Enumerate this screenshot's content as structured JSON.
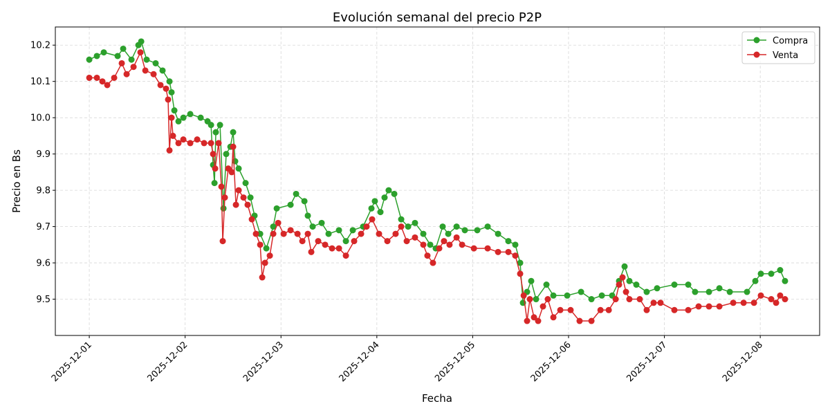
{
  "chart_data": {
    "type": "line",
    "title": "Evolución semanal del precio P2P",
    "xlabel": "Fecha",
    "ylabel": "Precio en Bs",
    "xlim": [
      "2025-11-30 15:30",
      "2025-12-08 14:52"
    ],
    "ylim": [
      9.4,
      10.25
    ],
    "x_ticks": [
      "2025-12-01",
      "2025-12-02",
      "2025-12-03",
      "2025-12-04",
      "2025-12-05",
      "2025-12-06",
      "2025-12-07",
      "2025-12-08"
    ],
    "y_ticks": [
      "9.5",
      "9.6",
      "9.7",
      "9.8",
      "9.9",
      "10.0",
      "10.1",
      "10.2"
    ],
    "grid": true,
    "grid_style": "dashed",
    "legend_position": "top-right",
    "markers": true,
    "series": [
      {
        "name": "Compra",
        "color": "#2ca02c",
        "points": [
          [
            "2025-12-01 00:00",
            10.16
          ],
          [
            "2025-12-01 01:54",
            10.17
          ],
          [
            "2025-12-01 03:38",
            10.18
          ],
          [
            "2025-12-01 07:06",
            10.17
          ],
          [
            "2025-12-01 08:29",
            10.19
          ],
          [
            "2025-12-01 10:34",
            10.16
          ],
          [
            "2025-12-01 12:18",
            10.2
          ],
          [
            "2025-12-01 13:00",
            10.21
          ],
          [
            "2025-12-01 14:22",
            10.16
          ],
          [
            "2025-12-01 16:37",
            10.15
          ],
          [
            "2025-12-01 18:21",
            10.13
          ],
          [
            "2025-12-01 20:05",
            10.1
          ],
          [
            "2025-12-01 20:36",
            10.07
          ],
          [
            "2025-12-01 21:18",
            10.02
          ],
          [
            "2025-12-01 22:20",
            9.99
          ],
          [
            "2025-12-01 23:33",
            10.0
          ],
          [
            "2025-12-02 01:17",
            10.01
          ],
          [
            "2025-12-02 03:53",
            10.0
          ],
          [
            "2025-12-02 05:37",
            9.99
          ],
          [
            "2025-12-02 06:29",
            9.98
          ],
          [
            "2025-12-02 07:00",
            9.87
          ],
          [
            "2025-12-02 07:21",
            9.82
          ],
          [
            "2025-12-02 07:41",
            9.96
          ],
          [
            "2025-12-02 08:44",
            9.98
          ],
          [
            "2025-12-02 09:36",
            9.75
          ],
          [
            "2025-12-02 10:17",
            9.9
          ],
          [
            "2025-12-02 11:20",
            9.92
          ],
          [
            "2025-12-02 12:01",
            9.96
          ],
          [
            "2025-12-02 12:32",
            9.88
          ],
          [
            "2025-12-02 13:24",
            9.86
          ],
          [
            "2025-12-02 15:08",
            9.82
          ],
          [
            "2025-12-02 16:21",
            9.78
          ],
          [
            "2025-12-02 17:23",
            9.73
          ],
          [
            "2025-12-02 18:47",
            9.68
          ],
          [
            "2025-12-02 20:20",
            9.64
          ],
          [
            "2025-12-02 22:04",
            9.7
          ],
          [
            "2025-12-02 22:56",
            9.75
          ],
          [
            "2025-12-03 02:24",
            9.76
          ],
          [
            "2025-12-03 03:47",
            9.79
          ],
          [
            "2025-12-03 05:52",
            9.77
          ],
          [
            "2025-12-03 06:43",
            9.73
          ],
          [
            "2025-12-03 07:56",
            9.7
          ],
          [
            "2025-12-03 10:11",
            9.71
          ],
          [
            "2025-12-03 11:55",
            9.68
          ],
          [
            "2025-12-03 14:31",
            9.69
          ],
          [
            "2025-12-03 16:15",
            9.66
          ],
          [
            "2025-12-03 17:59",
            9.69
          ],
          [
            "2025-12-03 20:34",
            9.7
          ],
          [
            "2025-12-03 22:39",
            9.75
          ],
          [
            "2025-12-03 23:30",
            9.77
          ],
          [
            "2025-12-04 00:54",
            9.74
          ],
          [
            "2025-12-04 01:56",
            9.78
          ],
          [
            "2025-12-04 02:58",
            9.8
          ],
          [
            "2025-12-04 04:22",
            9.79
          ],
          [
            "2025-12-04 06:06",
            9.72
          ],
          [
            "2025-12-04 07:50",
            9.7
          ],
          [
            "2025-12-04 09:33",
            9.71
          ],
          [
            "2025-12-04 11:38",
            9.68
          ],
          [
            "2025-12-04 13:22",
            9.65
          ],
          [
            "2025-12-04 14:45",
            9.64
          ],
          [
            "2025-12-04 16:29",
            9.7
          ],
          [
            "2025-12-04 17:53",
            9.68
          ],
          [
            "2025-12-04 19:58",
            9.7
          ],
          [
            "2025-12-04 22:02",
            9.69
          ],
          [
            "2025-12-05 01:09",
            9.69
          ],
          [
            "2025-12-05 03:45",
            9.7
          ],
          [
            "2025-12-05 06:21",
            9.68
          ],
          [
            "2025-12-05 08:56",
            9.66
          ],
          [
            "2025-12-05 10:40",
            9.65
          ],
          [
            "2025-12-05 11:53",
            9.6
          ],
          [
            "2025-12-05 12:35",
            9.49
          ],
          [
            "2025-12-05 13:37",
            9.52
          ],
          [
            "2025-12-05 14:39",
            9.55
          ],
          [
            "2025-12-05 15:52",
            9.5
          ],
          [
            "2025-12-05 18:28",
            9.54
          ],
          [
            "2025-12-05 20:12",
            9.51
          ],
          [
            "2025-12-05 23:40",
            9.51
          ],
          [
            "2025-12-06 03:08",
            9.52
          ],
          [
            "2025-12-06 05:44",
            9.5
          ],
          [
            "2025-12-06 08:20",
            9.51
          ],
          [
            "2025-12-06 10:55",
            9.51
          ],
          [
            "2025-12-06 12:39",
            9.55
          ],
          [
            "2025-12-06 14:02",
            9.59
          ],
          [
            "2025-12-06 15:14",
            9.55
          ],
          [
            "2025-12-06 16:58",
            9.54
          ],
          [
            "2025-12-06 19:34",
            9.52
          ],
          [
            "2025-12-06 22:10",
            9.53
          ],
          [
            "2025-12-07 02:30",
            9.54
          ],
          [
            "2025-12-07 05:58",
            9.54
          ],
          [
            "2025-12-07 07:41",
            9.52
          ],
          [
            "2025-12-07 11:10",
            9.52
          ],
          [
            "2025-12-07 13:46",
            9.53
          ],
          [
            "2025-12-07 16:22",
            9.52
          ],
          [
            "2025-12-07 20:41",
            9.52
          ],
          [
            "2025-12-07 22:46",
            9.55
          ],
          [
            "2025-12-08 00:09",
            9.57
          ],
          [
            "2025-12-08 02:45",
            9.57
          ],
          [
            "2025-12-08 04:59",
            9.58
          ],
          [
            "2025-12-08 06:12",
            9.55
          ]
        ]
      },
      {
        "name": "Venta",
        "color": "#d62728",
        "points": [
          [
            "2025-12-01 00:00",
            10.11
          ],
          [
            "2025-12-01 01:54",
            10.11
          ],
          [
            "2025-12-01 03:17",
            10.1
          ],
          [
            "2025-12-01 04:30",
            10.09
          ],
          [
            "2025-12-01 06:14",
            10.11
          ],
          [
            "2025-12-01 08:08",
            10.15
          ],
          [
            "2025-12-01 09:21",
            10.12
          ],
          [
            "2025-12-01 11:05",
            10.14
          ],
          [
            "2025-12-01 12:49",
            10.18
          ],
          [
            "2025-12-01 14:02",
            10.13
          ],
          [
            "2025-12-01 16:06",
            10.12
          ],
          [
            "2025-12-01 17:50",
            10.09
          ],
          [
            "2025-12-01 19:13",
            10.08
          ],
          [
            "2025-12-01 19:44",
            10.05
          ],
          [
            "2025-12-01 20:05",
            9.91
          ],
          [
            "2025-12-01 20:36",
            10.0
          ],
          [
            "2025-12-01 20:57",
            9.95
          ],
          [
            "2025-12-01 22:20",
            9.93
          ],
          [
            "2025-12-01 23:33",
            9.94
          ],
          [
            "2025-12-02 01:17",
            9.93
          ],
          [
            "2025-12-02 03:01",
            9.94
          ],
          [
            "2025-12-02 04:45",
            9.93
          ],
          [
            "2025-12-02 06:29",
            9.93
          ],
          [
            "2025-12-02 07:00",
            9.9
          ],
          [
            "2025-12-02 07:31",
            9.86
          ],
          [
            "2025-12-02 08:23",
            9.93
          ],
          [
            "2025-12-02 09:05",
            9.81
          ],
          [
            "2025-12-02 09:25",
            9.66
          ],
          [
            "2025-12-02 09:56",
            9.78
          ],
          [
            "2025-12-02 10:48",
            9.86
          ],
          [
            "2025-12-02 11:40",
            9.85
          ],
          [
            "2025-12-02 12:01",
            9.92
          ],
          [
            "2025-12-02 12:43",
            9.76
          ],
          [
            "2025-12-02 13:24",
            9.8
          ],
          [
            "2025-12-02 14:37",
            9.78
          ],
          [
            "2025-12-02 15:39",
            9.76
          ],
          [
            "2025-12-02 16:42",
            9.72
          ],
          [
            "2025-12-02 17:44",
            9.68
          ],
          [
            "2025-12-02 18:47",
            9.65
          ],
          [
            "2025-12-02 19:18",
            9.56
          ],
          [
            "2025-12-02 20:00",
            9.6
          ],
          [
            "2025-12-02 21:12",
            9.62
          ],
          [
            "2025-12-02 22:04",
            9.68
          ],
          [
            "2025-12-02 23:17",
            9.71
          ],
          [
            "2025-12-03 00:40",
            9.68
          ],
          [
            "2025-12-03 02:24",
            9.69
          ],
          [
            "2025-12-03 04:08",
            9.68
          ],
          [
            "2025-12-03 05:21",
            9.66
          ],
          [
            "2025-12-03 06:43",
            9.68
          ],
          [
            "2025-12-03 07:35",
            9.63
          ],
          [
            "2025-12-03 09:19",
            9.66
          ],
          [
            "2025-12-03 11:03",
            9.65
          ],
          [
            "2025-12-03 12:47",
            9.64
          ],
          [
            "2025-12-03 14:31",
            9.64
          ],
          [
            "2025-12-03 16:15",
            9.62
          ],
          [
            "2025-12-03 18:19",
            9.66
          ],
          [
            "2025-12-03 20:03",
            9.68
          ],
          [
            "2025-12-03 21:26",
            9.7
          ],
          [
            "2025-12-03 22:49",
            9.72
          ],
          [
            "2025-12-04 00:33",
            9.68
          ],
          [
            "2025-12-04 02:38",
            9.66
          ],
          [
            "2025-12-04 04:42",
            9.68
          ],
          [
            "2025-12-04 06:06",
            9.7
          ],
          [
            "2025-12-04 07:29",
            9.66
          ],
          [
            "2025-12-04 09:33",
            9.67
          ],
          [
            "2025-12-04 11:38",
            9.65
          ],
          [
            "2025-12-04 12:40",
            9.62
          ],
          [
            "2025-12-04 14:03",
            9.6
          ],
          [
            "2025-12-04 15:37",
            9.64
          ],
          [
            "2025-12-04 16:49",
            9.66
          ],
          [
            "2025-12-04 18:12",
            9.65
          ],
          [
            "2025-12-04 19:58",
            9.67
          ],
          [
            "2025-12-04 21:21",
            9.65
          ],
          [
            "2025-12-05 00:18",
            9.64
          ],
          [
            "2025-12-05 03:45",
            9.64
          ],
          [
            "2025-12-05 06:21",
            9.63
          ],
          [
            "2025-12-05 08:56",
            9.63
          ],
          [
            "2025-12-05 10:40",
            9.62
          ],
          [
            "2025-12-05 11:53",
            9.57
          ],
          [
            "2025-12-05 12:46",
            9.51
          ],
          [
            "2025-12-05 13:37",
            9.44
          ],
          [
            "2025-12-05 14:19",
            9.5
          ],
          [
            "2025-12-05 15:21",
            9.45
          ],
          [
            "2025-12-05 16:23",
            9.44
          ],
          [
            "2025-12-05 17:36",
            9.48
          ],
          [
            "2025-12-05 18:48",
            9.5
          ],
          [
            "2025-12-05 20:12",
            9.45
          ],
          [
            "2025-12-05 21:56",
            9.47
          ],
          [
            "2025-12-06 00:31",
            9.47
          ],
          [
            "2025-12-06 02:46",
            9.44
          ],
          [
            "2025-12-06 05:44",
            9.44
          ],
          [
            "2025-12-06 08:00",
            9.47
          ],
          [
            "2025-12-06 10:04",
            9.47
          ],
          [
            "2025-12-06 11:48",
            9.5
          ],
          [
            "2025-12-06 12:39",
            9.54
          ],
          [
            "2025-12-06 13:31",
            9.56
          ],
          [
            "2025-12-06 14:23",
            9.52
          ],
          [
            "2025-12-06 15:14",
            9.5
          ],
          [
            "2025-12-06 17:50",
            9.5
          ],
          [
            "2025-12-06 19:34",
            9.47
          ],
          [
            "2025-12-06 21:18",
            9.49
          ],
          [
            "2025-12-06 23:02",
            9.49
          ],
          [
            "2025-12-07 02:30",
            9.47
          ],
          [
            "2025-12-07 05:58",
            9.47
          ],
          [
            "2025-12-07 08:34",
            9.48
          ],
          [
            "2025-12-07 11:10",
            9.48
          ],
          [
            "2025-12-07 13:46",
            9.48
          ],
          [
            "2025-12-07 17:14",
            9.49
          ],
          [
            "2025-12-07 19:50",
            9.49
          ],
          [
            "2025-12-07 22:26",
            9.49
          ],
          [
            "2025-12-08 00:09",
            9.51
          ],
          [
            "2025-12-08 02:45",
            9.5
          ],
          [
            "2025-12-08 03:58",
            9.49
          ],
          [
            "2025-12-08 04:59",
            9.51
          ],
          [
            "2025-12-08 06:12",
            9.5
          ]
        ]
      }
    ]
  }
}
